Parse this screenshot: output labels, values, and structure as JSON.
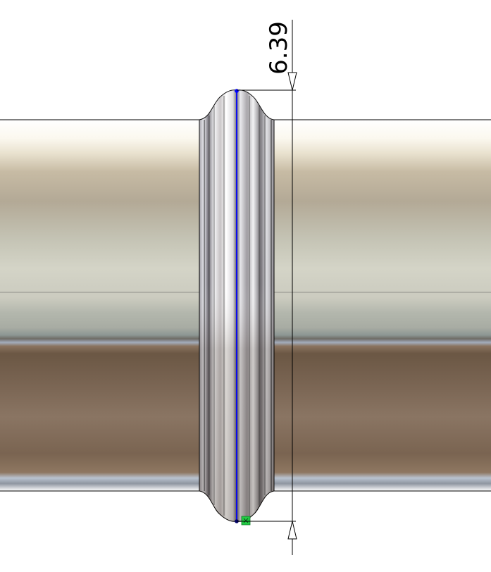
{
  "viewport": {
    "background_color": "#ffffff"
  },
  "dimension": {
    "value_text": "6.39",
    "line_color": "#000000"
  },
  "sketch": {
    "line_color": "#0000ff",
    "endpoint_color": "#0000ff",
    "relation_marker_color": "#22cc44",
    "relation_marker_icon": "coincident-relation-icon"
  },
  "model": {
    "shaft_top_color": "#f3efe6",
    "shaft_mid_color": "#c9c8bc",
    "shaft_lower_color": "#6e5a47",
    "bead_highlight_color": "#ffffff",
    "edge_color": "#000000"
  }
}
